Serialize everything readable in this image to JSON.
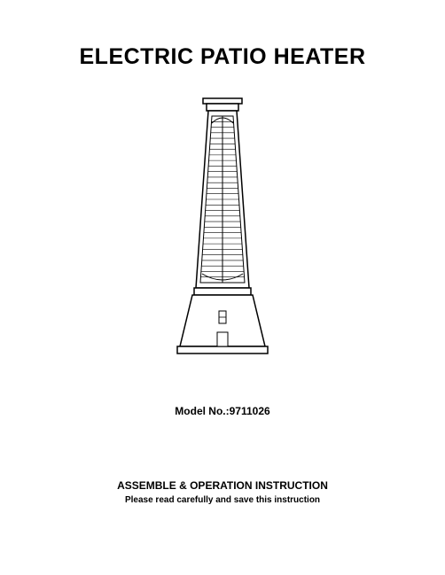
{
  "title": "ELECTRIC PATIO HEATER",
  "model": {
    "label": "Model No.:",
    "number": "9711026"
  },
  "instruction": {
    "heading": "ASSEMBLE & OPERATION INSTRUCTION",
    "subheading": "Please read carefully and save this instruction"
  },
  "illustration": {
    "stroke_color": "#000000",
    "fill_color": "#ffffff",
    "stroke_width": 1.5,
    "grille_line_count": 30
  }
}
